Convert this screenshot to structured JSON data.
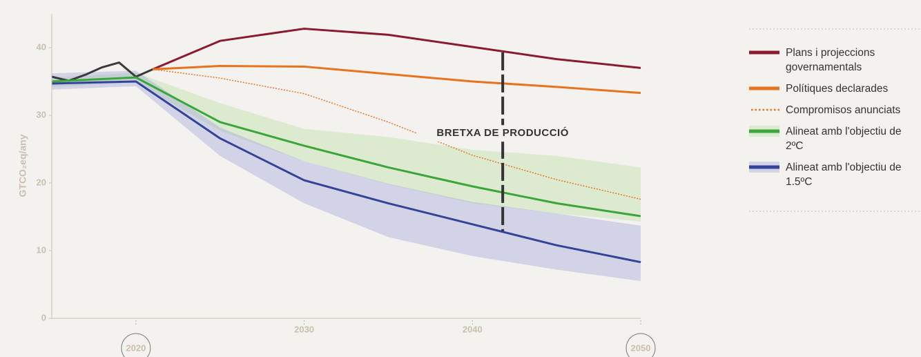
{
  "chart_data": {
    "type": "line",
    "ylabel": "GTCO₂eq/any",
    "xlim": [
      2015,
      2050
    ],
    "ylim": [
      0,
      45
    ],
    "xticks": [
      2020,
      2030,
      2040,
      2050
    ],
    "yticks": [
      0,
      10,
      20,
      30,
      40
    ],
    "legend": "right",
    "series": [
      {
        "color": "#3a3a3a",
        "x": [
          2015,
          2016,
          2017,
          2018,
          2019,
          2020,
          2021
        ],
        "values": [
          35.7,
          35.1,
          36.0,
          37.1,
          37.8,
          35.7,
          36.8
        ]
      },
      {
        "name": "Plans i projeccions governamentals",
        "color": "#8b1a2e",
        "x": [
          2021,
          2025,
          2030,
          2035,
          2040,
          2045,
          2050
        ],
        "values": [
          36.8,
          41.0,
          42.8,
          41.9,
          40.1,
          38.3,
          37.0
        ]
      },
      {
        "name": "Polítiques declarades",
        "color": "#e8731e",
        "x": [
          2021,
          2025,
          2030,
          2035,
          2040,
          2045,
          2050
        ],
        "values": [
          36.8,
          37.3,
          37.2,
          36.1,
          35.0,
          34.2,
          33.3
        ]
      },
      {
        "name": "Compromisos anunciats",
        "color": "#e8731e",
        "dashed": true,
        "x": [
          2021,
          2025,
          2030,
          2035,
          2040,
          2045,
          2050
        ],
        "values": [
          36.8,
          35.5,
          33.2,
          29.0,
          24.1,
          20.5,
          17.6
        ]
      },
      {
        "name": "Alineat amb l'objectiu de 2ºC",
        "color": "#3aa63a",
        "band_color": "rgba(190,225,170,0.45)",
        "x": [
          2015,
          2020,
          2025,
          2030,
          2035,
          2040,
          2045,
          2050
        ],
        "values": [
          35.0,
          35.6,
          29.0,
          25.5,
          22.3,
          19.5,
          17.0,
          15.1
        ],
        "band": {
          "upper": [
            35.6,
            36.3,
            31.8,
            28.0,
            26.8,
            24.9,
            24.0,
            22.3
          ],
          "lower": [
            34.2,
            34.8,
            27.7,
            23.2,
            19.8,
            17.0,
            15.5,
            14.3
          ]
        }
      },
      {
        "name": "Alineat amb l'objectiu de 1.5ºC",
        "color": "#33439a",
        "band_color": "rgba(150,155,220,0.35)",
        "x": [
          2015,
          2020,
          2025,
          2030,
          2035,
          2040,
          2045,
          2050
        ],
        "values": [
          34.7,
          35.0,
          26.6,
          20.4,
          17.0,
          13.9,
          10.8,
          8.3
        ],
        "band": {
          "upper": [
            36.2,
            36.6,
            28.2,
            23.2,
            19.9,
            17.2,
            15.5,
            13.7
          ],
          "lower": [
            33.8,
            34.3,
            24.0,
            17.0,
            12.0,
            9.2,
            7.2,
            5.5
          ]
        }
      }
    ],
    "annotations": [
      {
        "text": "BRETXA DE PRODUCCIÓ",
        "x": 2041.8,
        "from": 39.3,
        "to": 12.9
      }
    ]
  }
}
